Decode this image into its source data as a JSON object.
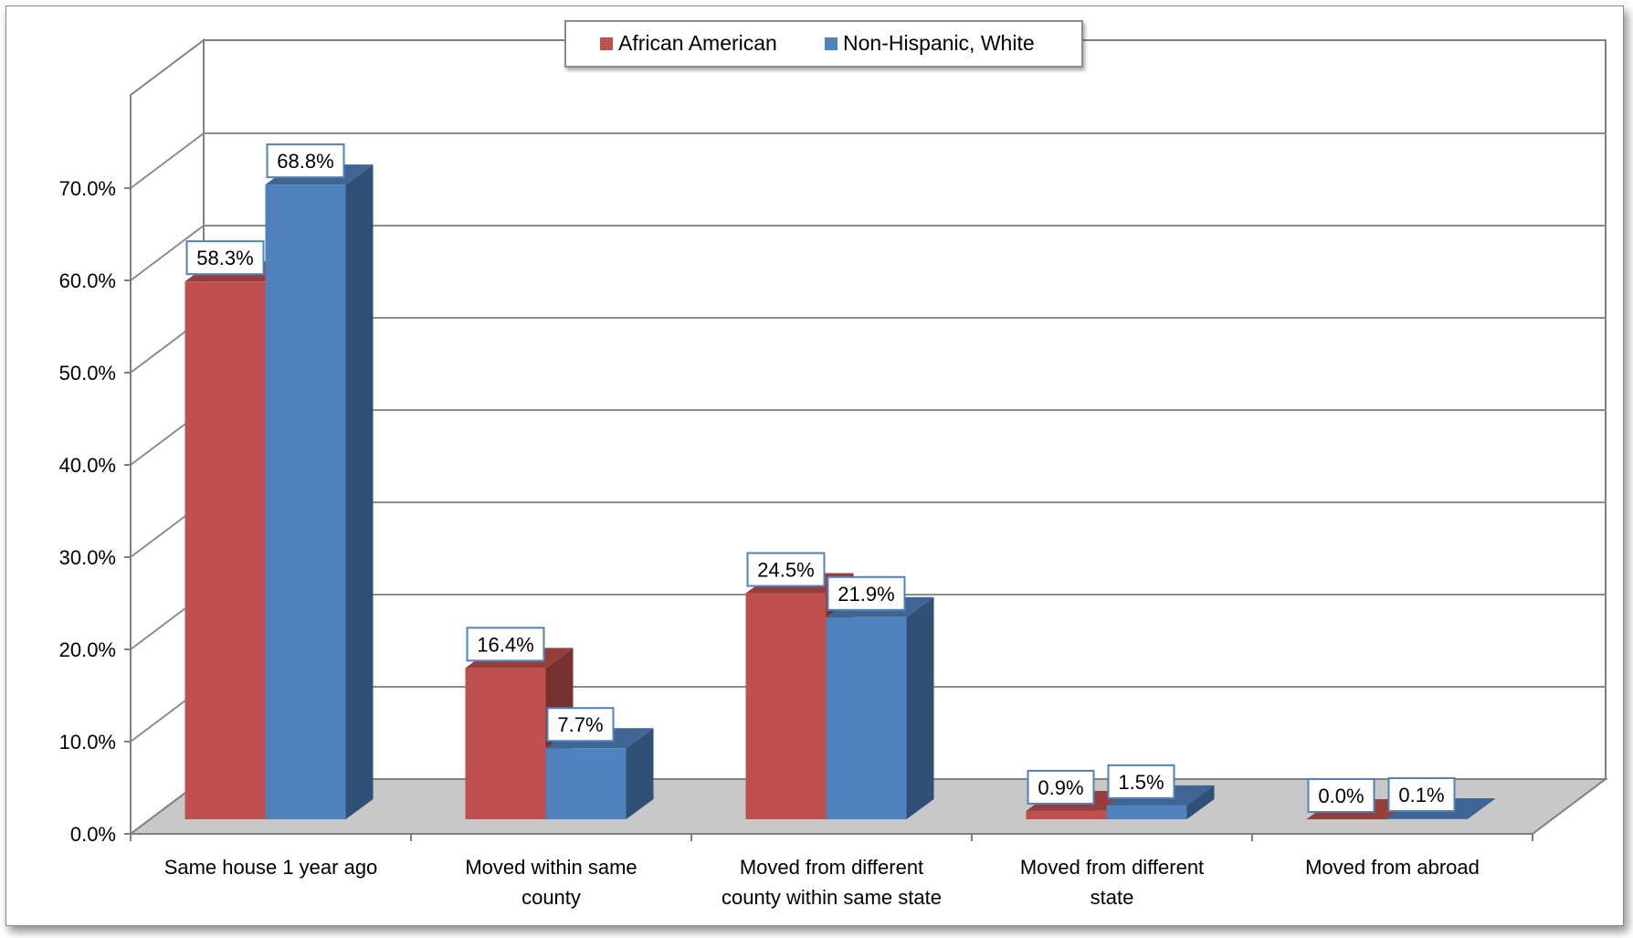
{
  "chart_data": {
    "type": "bar",
    "categories": [
      [
        "Same house 1 year ago"
      ],
      [
        "Moved within same",
        "county"
      ],
      [
        "Moved from different",
        "county within same state"
      ],
      [
        "Moved from different",
        "state"
      ],
      [
        "Moved from abroad"
      ]
    ],
    "series": [
      {
        "name": "African American",
        "values": [
          58.3,
          16.4,
          24.5,
          0.9,
          0.0
        ],
        "labels": [
          "58.3%",
          "16.4%",
          "24.5%",
          "0.9%",
          "0.0%"
        ]
      },
      {
        "name": "Non-Hispanic, White",
        "values": [
          68.8,
          7.7,
          21.9,
          1.5,
          0.1
        ],
        "labels": [
          "68.8%",
          "7.7%",
          "21.9%",
          "1.5%",
          "0.1%"
        ]
      }
    ],
    "y_ticks": [
      "0.0%",
      "10.0%",
      "20.0%",
      "30.0%",
      "40.0%",
      "50.0%",
      "60.0%",
      "70.0%"
    ],
    "ylim": [
      0,
      70
    ],
    "grid": true,
    "legend_position": "top-center",
    "style": "3d-clustered-column",
    "colors": {
      "African American": "#c0504d",
      "Non-Hispanic, White": "#4f81bd"
    }
  }
}
